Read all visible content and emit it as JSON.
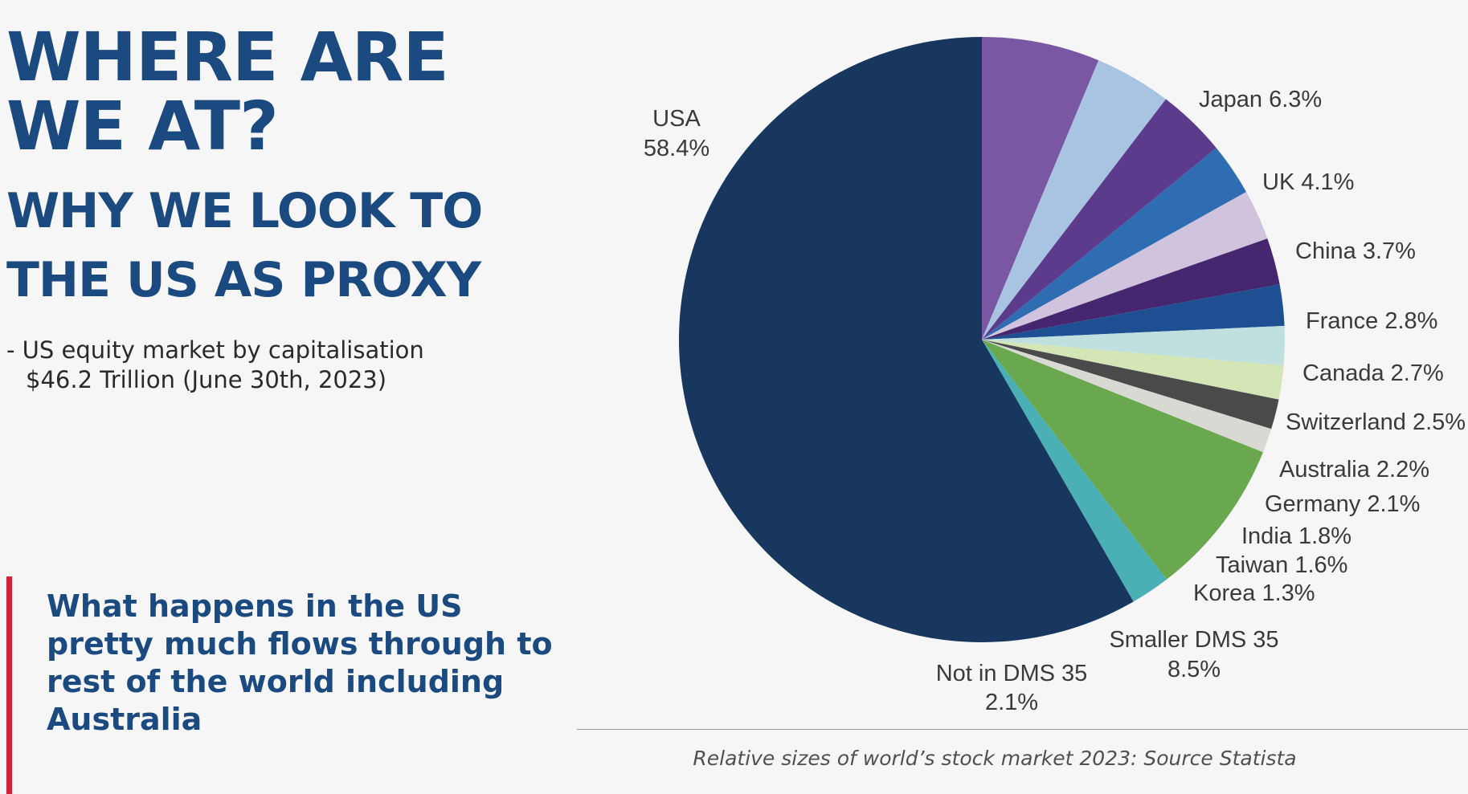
{
  "heading": {
    "line1": "WHERE ARE",
    "line2": "WE AT?",
    "sub1": "WHY WE LOOK TO",
    "sub2": "THE US AS PROXY"
  },
  "bullet": {
    "line1": "- US equity market by capitalisation",
    "line2": "$46.2 Trillion (June 30th, 2023)"
  },
  "callout": {
    "text": "What happens in the US pretty much flows through to rest of the world including Australia"
  },
  "caption": "Relative sizes of world’s stock market 2023: Source Statista",
  "colors": {
    "heading": "#1b4a80",
    "accent_bar": "#d0233a"
  },
  "chart_data": {
    "type": "pie",
    "title": "",
    "start": "12 o'clock",
    "direction": "clockwise",
    "slices": [
      {
        "name": "Japan",
        "value": 6.3,
        "label": "Japan 6.3%",
        "color": "#7a57a3"
      },
      {
        "name": "UK",
        "value": 4.1,
        "label": "UK 4.1%",
        "color": "#a9c4e3"
      },
      {
        "name": "China",
        "value": 3.7,
        "label": "China 3.7%",
        "color": "#5c3a8c"
      },
      {
        "name": "France",
        "value": 2.8,
        "label": "France 2.8%",
        "color": "#2f6db3"
      },
      {
        "name": "Canada",
        "value": 2.7,
        "label": "Canada 2.7%",
        "color": "#cfc3de"
      },
      {
        "name": "Switzerland",
        "value": 2.5,
        "label": "Switzerland 2.5%",
        "color": "#46276f"
      },
      {
        "name": "Australia",
        "value": 2.2,
        "label": "Australia 2.2%",
        "color": "#1e4f92"
      },
      {
        "name": "Germany",
        "value": 2.1,
        "label": "Germany 2.1%",
        "color": "#bfe0de"
      },
      {
        "name": "India",
        "value": 1.8,
        "label": "India 1.8%",
        "color": "#d4e6b5"
      },
      {
        "name": "Taiwan",
        "value": 1.6,
        "label": "Taiwan 1.6%",
        "color": "#4a4a4a"
      },
      {
        "name": "Korea",
        "value": 1.3,
        "label": "Korea 1.3%",
        "color": "#d9d9d3"
      },
      {
        "name": "Smaller DMS 35",
        "value": 8.5,
        "label": "Smaller DMS 35 8.5%",
        "color": "#6aa84f"
      },
      {
        "name": "Not in DMS 35",
        "value": 2.1,
        "label": "Not in DMS 35 2.1%",
        "color": "#4ab0b5"
      },
      {
        "name": "USA",
        "value": 58.4,
        "label": "USA 58.4%",
        "color": "#17375f"
      }
    ]
  }
}
